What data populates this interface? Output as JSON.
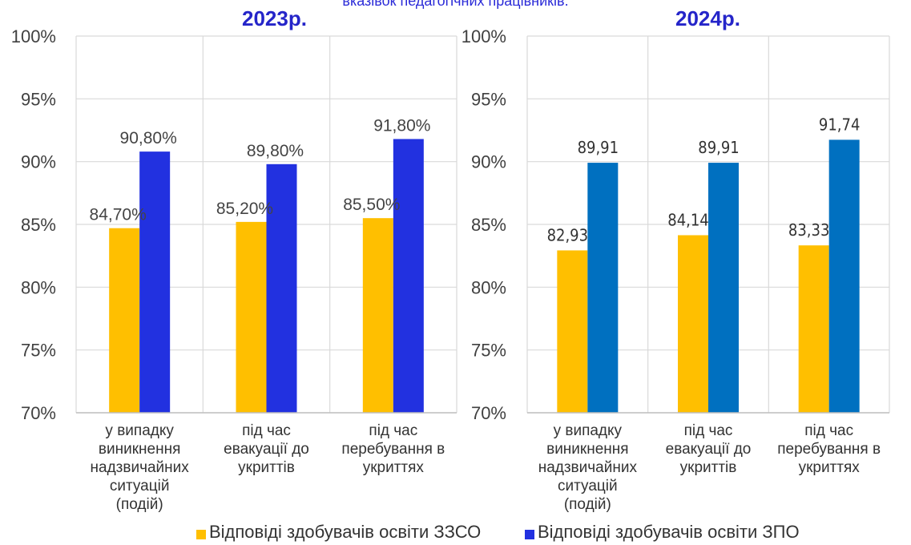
{
  "caption": "вказівок педагогічних працівників.",
  "chart_data": [
    {
      "type": "bar",
      "title": "2023р.",
      "categories": [
        [
          "у випадку",
          "виникнення",
          "надзвичайних",
          "ситуацій",
          "(подій)"
        ],
        [
          "під час",
          "евакуації до",
          "укриттів"
        ],
        [
          "під час",
          "перебування в",
          "укриттях"
        ]
      ],
      "series": [
        {
          "name": "Відповіді здобувачів освіти ЗЗСО",
          "values": [
            84.7,
            85.2,
            85.5
          ],
          "labels": [
            "84,70%",
            "85,20%",
            "85,50%"
          ],
          "color": "#ffbf00"
        },
        {
          "name": "Відповіді здобувачів освіти ЗПО",
          "values": [
            90.8,
            89.8,
            91.8
          ],
          "labels": [
            "90,80%",
            "89,80%",
            "91,80%"
          ],
          "color": "#2231e0"
        }
      ],
      "ylim": [
        70,
        100
      ],
      "yticks": [
        "70%",
        "75%",
        "80%",
        "85%",
        "90%",
        "95%",
        "100%"
      ],
      "grid": true
    },
    {
      "type": "bar",
      "title": "2024р.",
      "categories": [
        [
          "у випадку",
          "виникнення",
          "надзвичайних",
          "ситуацій",
          "(подій)"
        ],
        [
          "під час",
          "евакуації до",
          "укриттів"
        ],
        [
          "під час",
          "перебування в",
          "укриттях"
        ]
      ],
      "series": [
        {
          "name": "Відповіді здобувачів освіти ЗЗСО",
          "values": [
            82.93,
            84.14,
            83.33
          ],
          "labels": [
            "82,93",
            "84,14",
            "83,33"
          ],
          "color": "#ffbf00"
        },
        {
          "name": "Відповіді здобувачів освіти ЗПО",
          "values": [
            89.91,
            89.91,
            91.74
          ],
          "labels": [
            "89,91",
            "89,91",
            "91,74"
          ],
          "color": "#0070c0"
        }
      ],
      "ylim": [
        70,
        100
      ],
      "yticks": [
        "70%",
        "75%",
        "80%",
        "85%",
        "90%",
        "95%",
        "100%"
      ],
      "grid": true
    }
  ],
  "legend": {
    "position": "bottom",
    "items": [
      {
        "label": "Відповіді здобувачів освіти ЗЗСО",
        "color": "#ffbf00"
      },
      {
        "label": "Відповіді здобувачів освіти ЗПО",
        "color": "#2231e0"
      }
    ]
  }
}
